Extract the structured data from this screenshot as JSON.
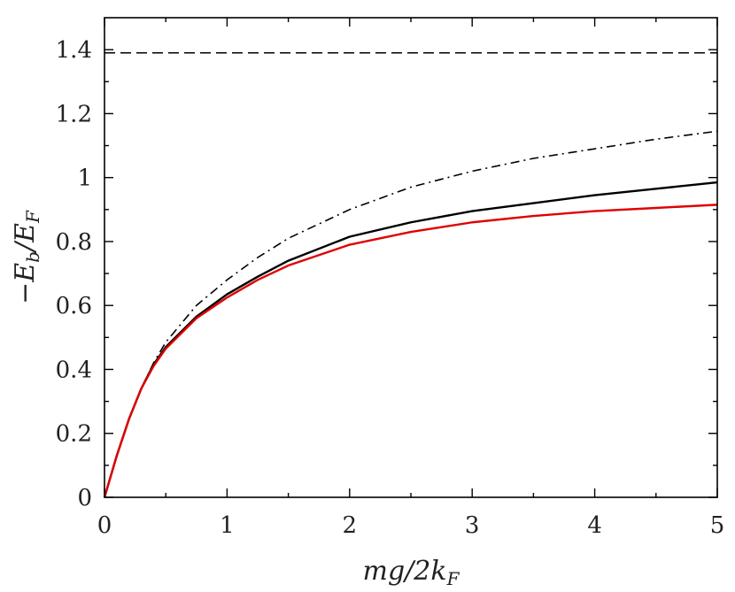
{
  "chart_data": {
    "type": "line",
    "xlabel": "mg/2k_F",
    "ylabel": "−E_b/E_F",
    "xlim": [
      0,
      5
    ],
    "ylim": [
      0,
      1.5
    ],
    "x_ticks": [
      0,
      1,
      2,
      3,
      4,
      5
    ],
    "x_tick_labels": [
      "0",
      "1",
      "2",
      "3",
      "4",
      "5"
    ],
    "y_ticks": [
      0,
      0.2,
      0.4,
      0.6,
      0.8,
      1.0,
      1.2,
      1.4
    ],
    "y_tick_labels": [
      "0",
      "0.2",
      "0.4",
      "0.6",
      "0.8",
      "1",
      "1.2",
      "1.4"
    ],
    "grid": false,
    "series": [
      {
        "style": "dashed",
        "color": "#000000",
        "x": [
          0,
          5
        ],
        "y": [
          1.39,
          1.39
        ]
      },
      {
        "style": "dashdot",
        "color": "#000000",
        "x": [
          0,
          0.1,
          0.2,
          0.3,
          0.4,
          0.5,
          0.75,
          1,
          1.25,
          1.5,
          2,
          2.5,
          3,
          3.5,
          4,
          4.5,
          5
        ],
        "y": [
          0,
          0.13,
          0.245,
          0.34,
          0.42,
          0.485,
          0.6,
          0.68,
          0.75,
          0.81,
          0.9,
          0.97,
          1.02,
          1.06,
          1.09,
          1.12,
          1.145
        ]
      },
      {
        "style": "solid",
        "color": "#000000",
        "x": [
          0,
          0.1,
          0.2,
          0.3,
          0.4,
          0.5,
          0.75,
          1,
          1.25,
          1.5,
          2,
          2.5,
          3,
          3.5,
          4,
          4.5,
          5
        ],
        "y": [
          0,
          0.13,
          0.245,
          0.34,
          0.415,
          0.47,
          0.565,
          0.635,
          0.69,
          0.74,
          0.815,
          0.86,
          0.895,
          0.92,
          0.945,
          0.965,
          0.985
        ]
      },
      {
        "style": "solid",
        "color": "#e00000",
        "x": [
          0,
          0.1,
          0.2,
          0.3,
          0.4,
          0.5,
          0.75,
          1,
          1.25,
          1.5,
          2,
          2.5,
          3,
          3.5,
          4,
          4.5,
          5
        ],
        "y": [
          0,
          0.13,
          0.245,
          0.34,
          0.41,
          0.465,
          0.56,
          0.625,
          0.68,
          0.725,
          0.79,
          0.83,
          0.86,
          0.88,
          0.895,
          0.905,
          0.915
        ]
      }
    ]
  }
}
